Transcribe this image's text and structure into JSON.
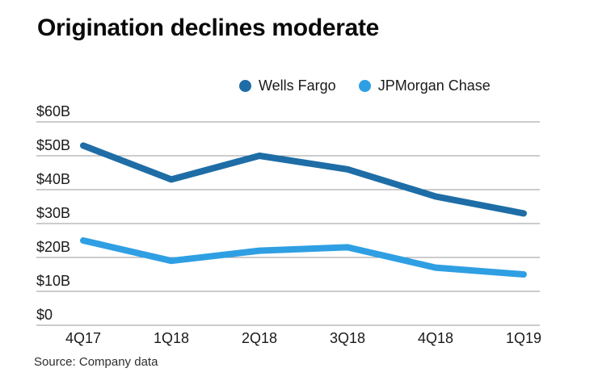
{
  "title": "Origination declines moderate",
  "source": "Source: Company data",
  "colors": {
    "wells_fargo": "#1e6da6",
    "jpmorgan_chase": "#2f9fe3",
    "gridline": "#999999",
    "text": "#1a1a1a"
  },
  "chart_data": {
    "type": "line",
    "title": "Origination declines moderate",
    "categories": [
      "4Q17",
      "1Q18",
      "2Q18",
      "3Q18",
      "4Q18",
      "1Q19"
    ],
    "series": [
      {
        "name": "Wells Fargo",
        "color": "#1e6da6",
        "values": [
          53,
          43,
          50,
          46,
          38,
          33
        ]
      },
      {
        "name": "JPMorgan Chase",
        "color": "#2f9fe3",
        "values": [
          25,
          19,
          22,
          23,
          17,
          15
        ]
      }
    ],
    "xlabel": "",
    "ylabel": "",
    "ylim": [
      0,
      60
    ],
    "ytick_step": 10,
    "ytick_labels": [
      "$0",
      "$10B",
      "$20B",
      "$30B",
      "$40B",
      "$50B",
      "$60B"
    ],
    "grid": true,
    "legend_position": "top-right",
    "source": "Source: Company data"
  }
}
